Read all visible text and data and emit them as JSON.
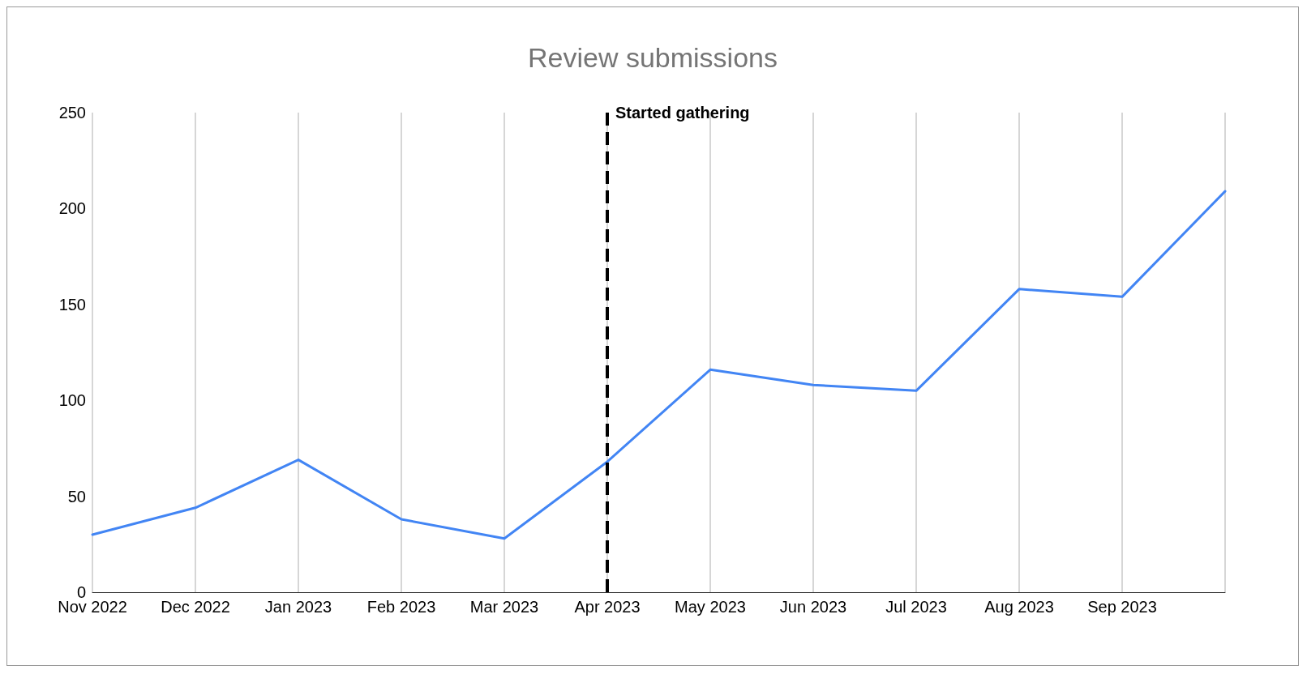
{
  "chart_data": {
    "type": "line",
    "title": "Review submissions",
    "categories": [
      "Nov 2022",
      "Dec 2022",
      "Jan 2023",
      "Feb 2023",
      "Mar 2023",
      "Apr 2023",
      "May 2023",
      "Jun 2023",
      "Jul 2023",
      "Aug 2023",
      "Sep 2023",
      null
    ],
    "series": [
      {
        "color": "#4285f4",
        "values": [
          30,
          44,
          69,
          38,
          28,
          68,
          116,
          108,
          105,
          158,
          154,
          209
        ]
      }
    ],
    "ylim": [
      0,
      250
    ],
    "yticks": [
      0,
      50,
      100,
      150,
      200,
      250
    ],
    "grid": "x",
    "marker": "none",
    "line_style": "solid",
    "ref_lines": [
      {
        "axis": "x",
        "value": "Apr 2023",
        "label": "Started gathering",
        "color": "#000000",
        "line_style": "dashed"
      }
    ]
  }
}
